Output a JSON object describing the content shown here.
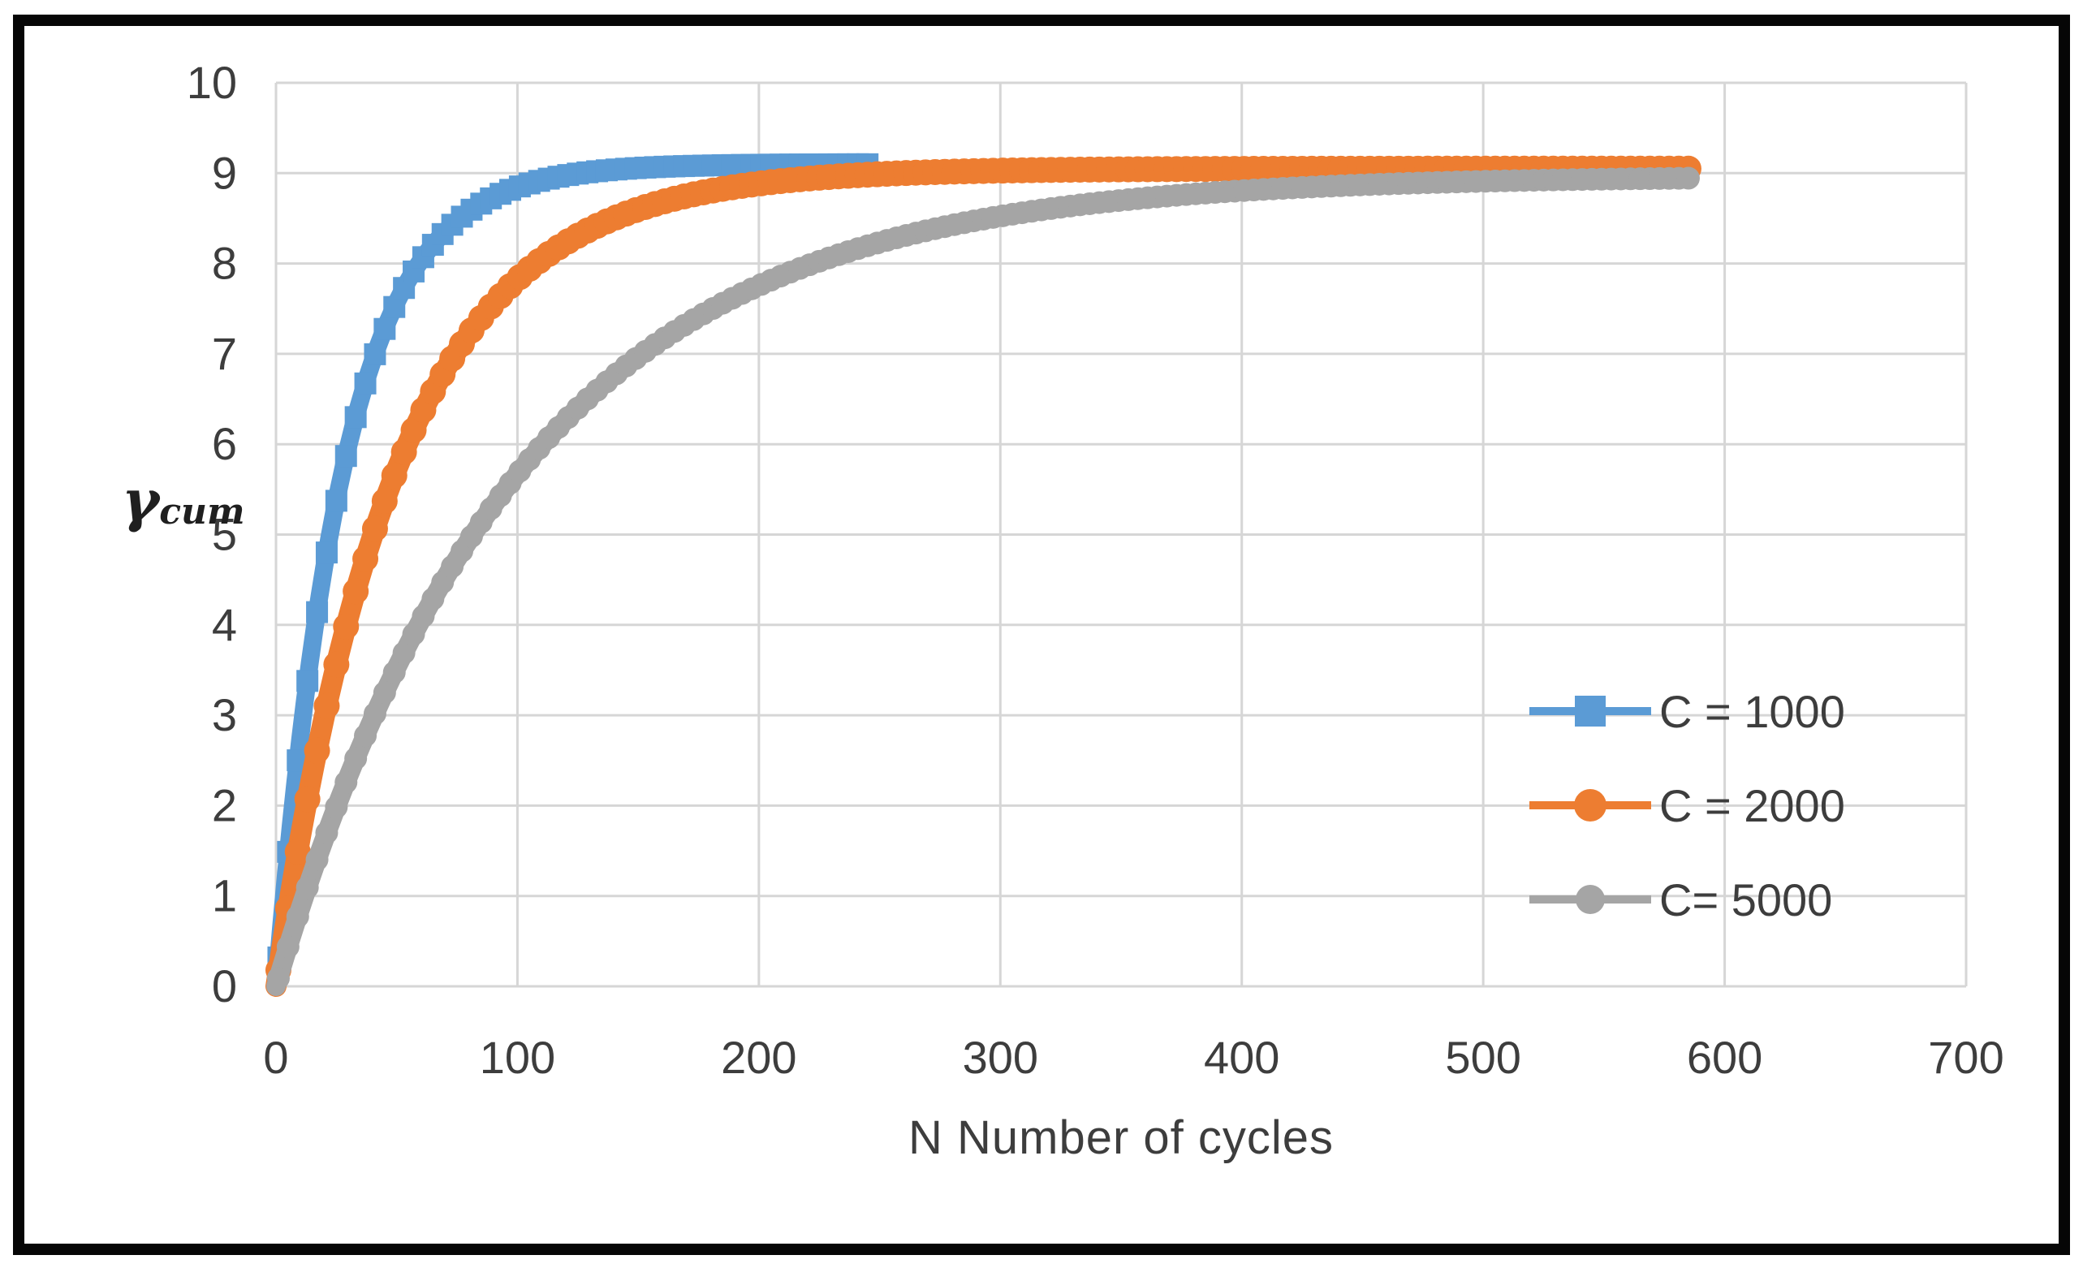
{
  "figure": {
    "frame_color": "#000000",
    "background": "#ffffff",
    "gridline_color": "#d6d6d6",
    "tick_label_color": "#3d3d3d"
  },
  "chart_data": {
    "type": "scatter",
    "title": "",
    "xlabel": "N Number of cycles",
    "ylabel_symbol": "γ",
    "ylabel_subscript": "cum",
    "xlim": [
      0,
      700
    ],
    "ylim": [
      0,
      10
    ],
    "x_ticks": [
      0,
      100,
      200,
      300,
      400,
      500,
      600,
      700
    ],
    "y_ticks": [
      0,
      1,
      2,
      3,
      4,
      5,
      6,
      7,
      8,
      9,
      10
    ],
    "grid": true,
    "legend_position": "inside-right",
    "series": [
      {
        "name": "C = 1000",
        "color": "#5b9bd5",
        "marker": "square",
        "model": {
          "type": "saturating_exponential",
          "formula": "y = A*(1 - exp(-N/tau))",
          "A": 9.1,
          "tau": 28,
          "N_start": 0,
          "N_end": 245
        },
        "sampled_points": {
          "N": [
            0,
            25,
            50,
            75,
            100,
            125,
            150,
            175,
            200,
            225,
            245
          ],
          "y": [
            0,
            5.37,
            7.57,
            8.48,
            8.84,
            9.0,
            9.06,
            9.08,
            9.09,
            9.1,
            9.1
          ]
        }
      },
      {
        "name": "C = 2000",
        "color": "#ed7d31",
        "marker": "circle",
        "model": {
          "type": "saturating_exponential",
          "formula": "y = A*(1 - exp(-N/tau))",
          "A": 9.05,
          "tau": 50,
          "N_start": 0,
          "N_end": 585
        },
        "sampled_points": {
          "N": [
            0,
            25,
            50,
            75,
            100,
            150,
            200,
            250,
            300,
            350,
            400,
            450,
            500,
            550,
            585
          ],
          "y": [
            0,
            3.56,
            5.72,
            7.03,
            7.83,
            8.6,
            8.88,
            8.99,
            9.03,
            9.04,
            9.05,
            9.05,
            9.05,
            9.05,
            9.05
          ]
        }
      },
      {
        "name": "C= 5000",
        "color": "#a5a5a5",
        "marker": "circle",
        "model": {
          "type": "saturating_exponential",
          "formula": "y = A*(1 - exp(-N/tau))",
          "A": 8.97,
          "tau": 100,
          "N_start": 0,
          "N_end": 585
        },
        "sampled_points": {
          "N": [
            0,
            25,
            50,
            75,
            100,
            150,
            200,
            250,
            300,
            350,
            400,
            450,
            500,
            550,
            585
          ],
          "y": [
            0,
            1.98,
            3.53,
            4.73,
            5.67,
            6.97,
            7.76,
            8.23,
            8.52,
            8.7,
            8.81,
            8.87,
            8.91,
            8.93,
            8.94
          ]
        }
      }
    ]
  }
}
